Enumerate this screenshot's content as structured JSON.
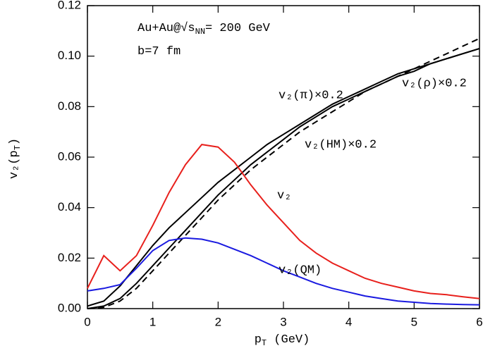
{
  "chart_data": {
    "type": "line",
    "x_label": [
      "p",
      "T",
      " (GeV)"
    ],
    "y_label": [
      "v₂(p",
      "T",
      ")"
    ],
    "annotations": [
      [
        "Au+Au@√s",
        "NN",
        "= 200 GeV"
      ],
      [
        "b=7 fm"
      ]
    ],
    "x": [
      0,
      0.25,
      0.5,
      0.75,
      1,
      1.25,
      1.5,
      1.75,
      2,
      2.25,
      2.5,
      2.75,
      3,
      3.25,
      3.5,
      3.75,
      4,
      4.25,
      4.5,
      4.75,
      5,
      5.25,
      5.5,
      5.75,
      6
    ],
    "series": [
      {
        "name": "v₂(π)×0.2",
        "color": "#000000",
        "dash": false,
        "values": [
          0.001,
          0.003,
          0.009,
          0.017,
          0.025,
          0.032,
          0.038,
          0.044,
          0.05,
          0.055,
          0.06,
          0.065,
          0.069,
          0.073,
          0.077,
          0.081,
          0.084,
          0.087,
          0.09,
          0.093,
          0.095,
          0.097,
          0.099,
          0.101,
          0.103
        ]
      },
      {
        "name": "v₂(ρ)×0.2",
        "color": "#000000",
        "dash": false,
        "values": [
          0,
          0.001,
          0.004,
          0.01,
          0.017,
          0.024,
          0.031,
          0.038,
          0.045,
          0.051,
          0.057,
          0.062,
          0.067,
          0.072,
          0.076,
          0.08,
          0.083,
          0.086,
          0.089,
          0.092,
          0.094,
          0.097,
          0.099,
          0.101,
          0.103
        ]
      },
      {
        "name": "v₂(HM)×0.2",
        "color": "#000000",
        "dash": true,
        "values": [
          0,
          0.0005,
          0.003,
          0.008,
          0.015,
          0.022,
          0.029,
          0.036,
          0.043,
          0.049,
          0.055,
          0.06,
          0.065,
          0.07,
          0.074,
          0.078,
          0.082,
          0.086,
          0.089,
          0.092,
          0.095,
          0.098,
          0.101,
          0.104,
          0.107
        ]
      },
      {
        "name": "v₂",
        "color": "#e8201c",
        "dash": false,
        "values": [
          0.008,
          0.021,
          0.015,
          0.021,
          0.033,
          0.046,
          0.057,
          0.065,
          0.064,
          0.058,
          0.049,
          0.041,
          0.034,
          0.027,
          0.022,
          0.018,
          0.015,
          0.012,
          0.01,
          0.0085,
          0.007,
          0.006,
          0.0055,
          0.0047,
          0.004
        ]
      },
      {
        "name": "v₂(QM)",
        "color": "#1a1ae0",
        "dash": false,
        "values": [
          0.007,
          0.008,
          0.0095,
          0.016,
          0.023,
          0.027,
          0.028,
          0.0275,
          0.026,
          0.0235,
          0.021,
          0.018,
          0.015,
          0.0125,
          0.01,
          0.008,
          0.0065,
          0.005,
          0.004,
          0.003,
          0.0025,
          0.002,
          0.0018,
          0.0016,
          0.0015
        ]
      }
    ],
    "xlim": [
      0,
      6
    ],
    "xticks": [
      0,
      1,
      2,
      3,
      4,
      5,
      6
    ],
    "ylim": [
      0,
      0.12
    ],
    "yticks": [
      {
        "value": 0,
        "label": "0.00"
      },
      {
        "value": 0.02,
        "label": "0.02"
      },
      {
        "value": 0.04,
        "label": "0.04"
      },
      {
        "value": 0.06,
        "label": "0.06"
      },
      {
        "value": 0.08,
        "label": "0.08"
      },
      {
        "value": 0.1,
        "label": "0.10"
      },
      {
        "value": 0.12,
        "label": "0.12"
      }
    ]
  }
}
